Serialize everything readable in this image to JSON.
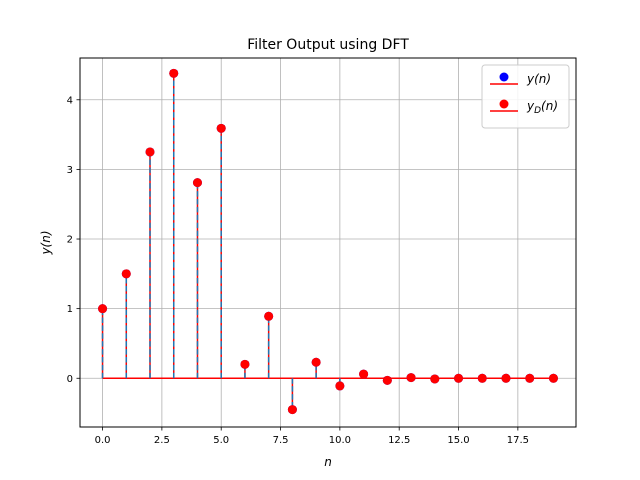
{
  "chart_data": {
    "type": "stem",
    "title": "Filter Output using DFT",
    "xlabel": "n",
    "ylabel": "y(n)",
    "xlim": [
      -0.95,
      19.95
    ],
    "ylim": [
      -0.7,
      4.6
    ],
    "xticks": [
      0.0,
      2.5,
      5.0,
      7.5,
      10.0,
      12.5,
      15.0,
      17.5
    ],
    "xtick_labels": [
      "0.0",
      "2.5",
      "5.0",
      "7.5",
      "10.0",
      "12.5",
      "15.0",
      "17.5"
    ],
    "yticks": [
      0,
      1,
      2,
      3,
      4
    ],
    "ytick_labels": [
      "0",
      "1",
      "2",
      "3",
      "4"
    ],
    "grid": true,
    "legend_position": "top-right",
    "x": [
      0,
      1,
      2,
      3,
      4,
      5,
      6,
      7,
      8,
      9,
      10,
      11,
      12,
      13,
      14,
      15,
      16,
      17,
      18,
      19
    ],
    "series": [
      {
        "name": "y(n)",
        "legend_main": "y",
        "legend_sub": "",
        "legend_suffix": "(n)",
        "marker_color": "#0000ff",
        "line_color": "#ff0000",
        "linestyle": "solid",
        "values": [
          1.0,
          1.5,
          3.25,
          4.38,
          2.81,
          3.59,
          0.2,
          0.89,
          -0.45,
          0.23,
          -0.11,
          0.06,
          -0.03,
          0.01,
          -0.01,
          0.0,
          0.0,
          0.0,
          0.0,
          0.0
        ]
      },
      {
        "name": "yD(n)",
        "legend_main": "y",
        "legend_sub": "D",
        "legend_suffix": "(n)",
        "marker_color": "#ff0000",
        "line_color": "#1f77b4",
        "linestyle": "dashed",
        "values": [
          1.0,
          1.5,
          3.25,
          4.38,
          2.81,
          3.59,
          0.2,
          0.89,
          -0.45,
          0.23,
          -0.11,
          0.06,
          -0.03,
          0.01,
          -0.01,
          0.0,
          0.0,
          0.0,
          0.0,
          0.0
        ]
      }
    ],
    "baseline_color": "#ff0000"
  }
}
